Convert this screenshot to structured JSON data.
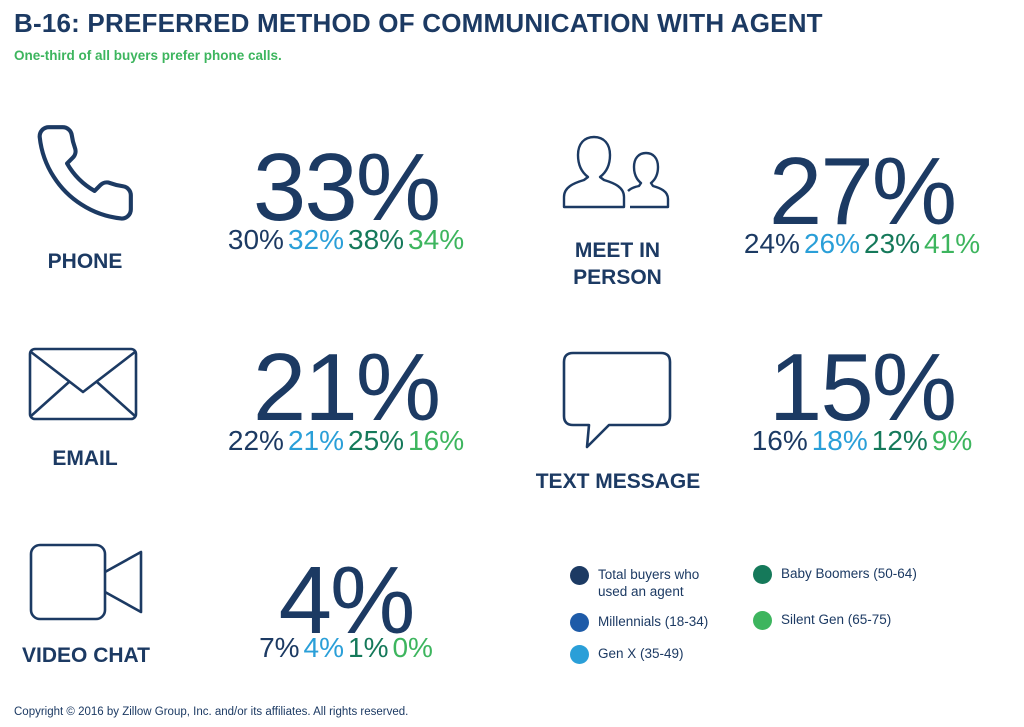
{
  "title": "B-16: PREFERRED METHOD OF COMMUNICATION WITH AGENT",
  "subtitle": "One-third of all buyers prefer phone calls.",
  "copyright": "Copyright © 2016 by Zillow Group, Inc. and/or its affiliates. All rights reserved.",
  "colors": {
    "total": "#1c3a63",
    "millennials": "#1e5ba8",
    "genx": "#2a9fd8",
    "boomers": "#15795a",
    "silent": "#3db55e"
  },
  "chart_data": {
    "type": "table",
    "unit": "%",
    "series": [
      {
        "key": "total",
        "name": "Total buyers who used an agent"
      },
      {
        "key": "millennials",
        "name": "Millennials (18-34)"
      },
      {
        "key": "genx",
        "name": "Gen X (35-49)"
      },
      {
        "key": "boomers",
        "name": "Baby Boomers (50-64)"
      },
      {
        "key": "silent",
        "name": "Silent Gen (65-75)"
      }
    ],
    "categories": [
      {
        "label": "PHONE",
        "icon": "phone-icon",
        "total": "33%",
        "values": [
          "30%",
          "32%",
          "38%",
          "34%"
        ]
      },
      {
        "label": "MEET IN PERSON",
        "label_lines": [
          "MEET IN",
          "PERSON"
        ],
        "icon": "people-icon",
        "total": "27%",
        "values": [
          "24%",
          "26%",
          "23%",
          "41%"
        ]
      },
      {
        "label": "EMAIL",
        "icon": "envelope-icon",
        "total": "21%",
        "values": [
          "22%",
          "21%",
          "25%",
          "16%"
        ]
      },
      {
        "label": "TEXT MESSAGE",
        "icon": "speech-bubble-icon",
        "total": "15%",
        "values": [
          "16%",
          "18%",
          "12%",
          "9%"
        ]
      },
      {
        "label": "VIDEO CHAT",
        "icon": "video-camera-icon",
        "total": "4%",
        "values": [
          "7%",
          "4%",
          "1%",
          "0%"
        ]
      }
    ],
    "legend": {
      "items": [
        {
          "lines": [
            "Total buyers who",
            "used an agent"
          ],
          "color_key": "total"
        },
        {
          "lines": [
            "Millennials (18-34)"
          ],
          "color_key": "millennials"
        },
        {
          "lines": [
            "Gen X (35-49)"
          ],
          "color_key": "genx"
        },
        {
          "lines": [
            "Baby Boomers (50-64)"
          ],
          "color_key": "boomers"
        },
        {
          "lines": [
            "Silent Gen (65-75)"
          ],
          "color_key": "silent"
        }
      ]
    }
  }
}
